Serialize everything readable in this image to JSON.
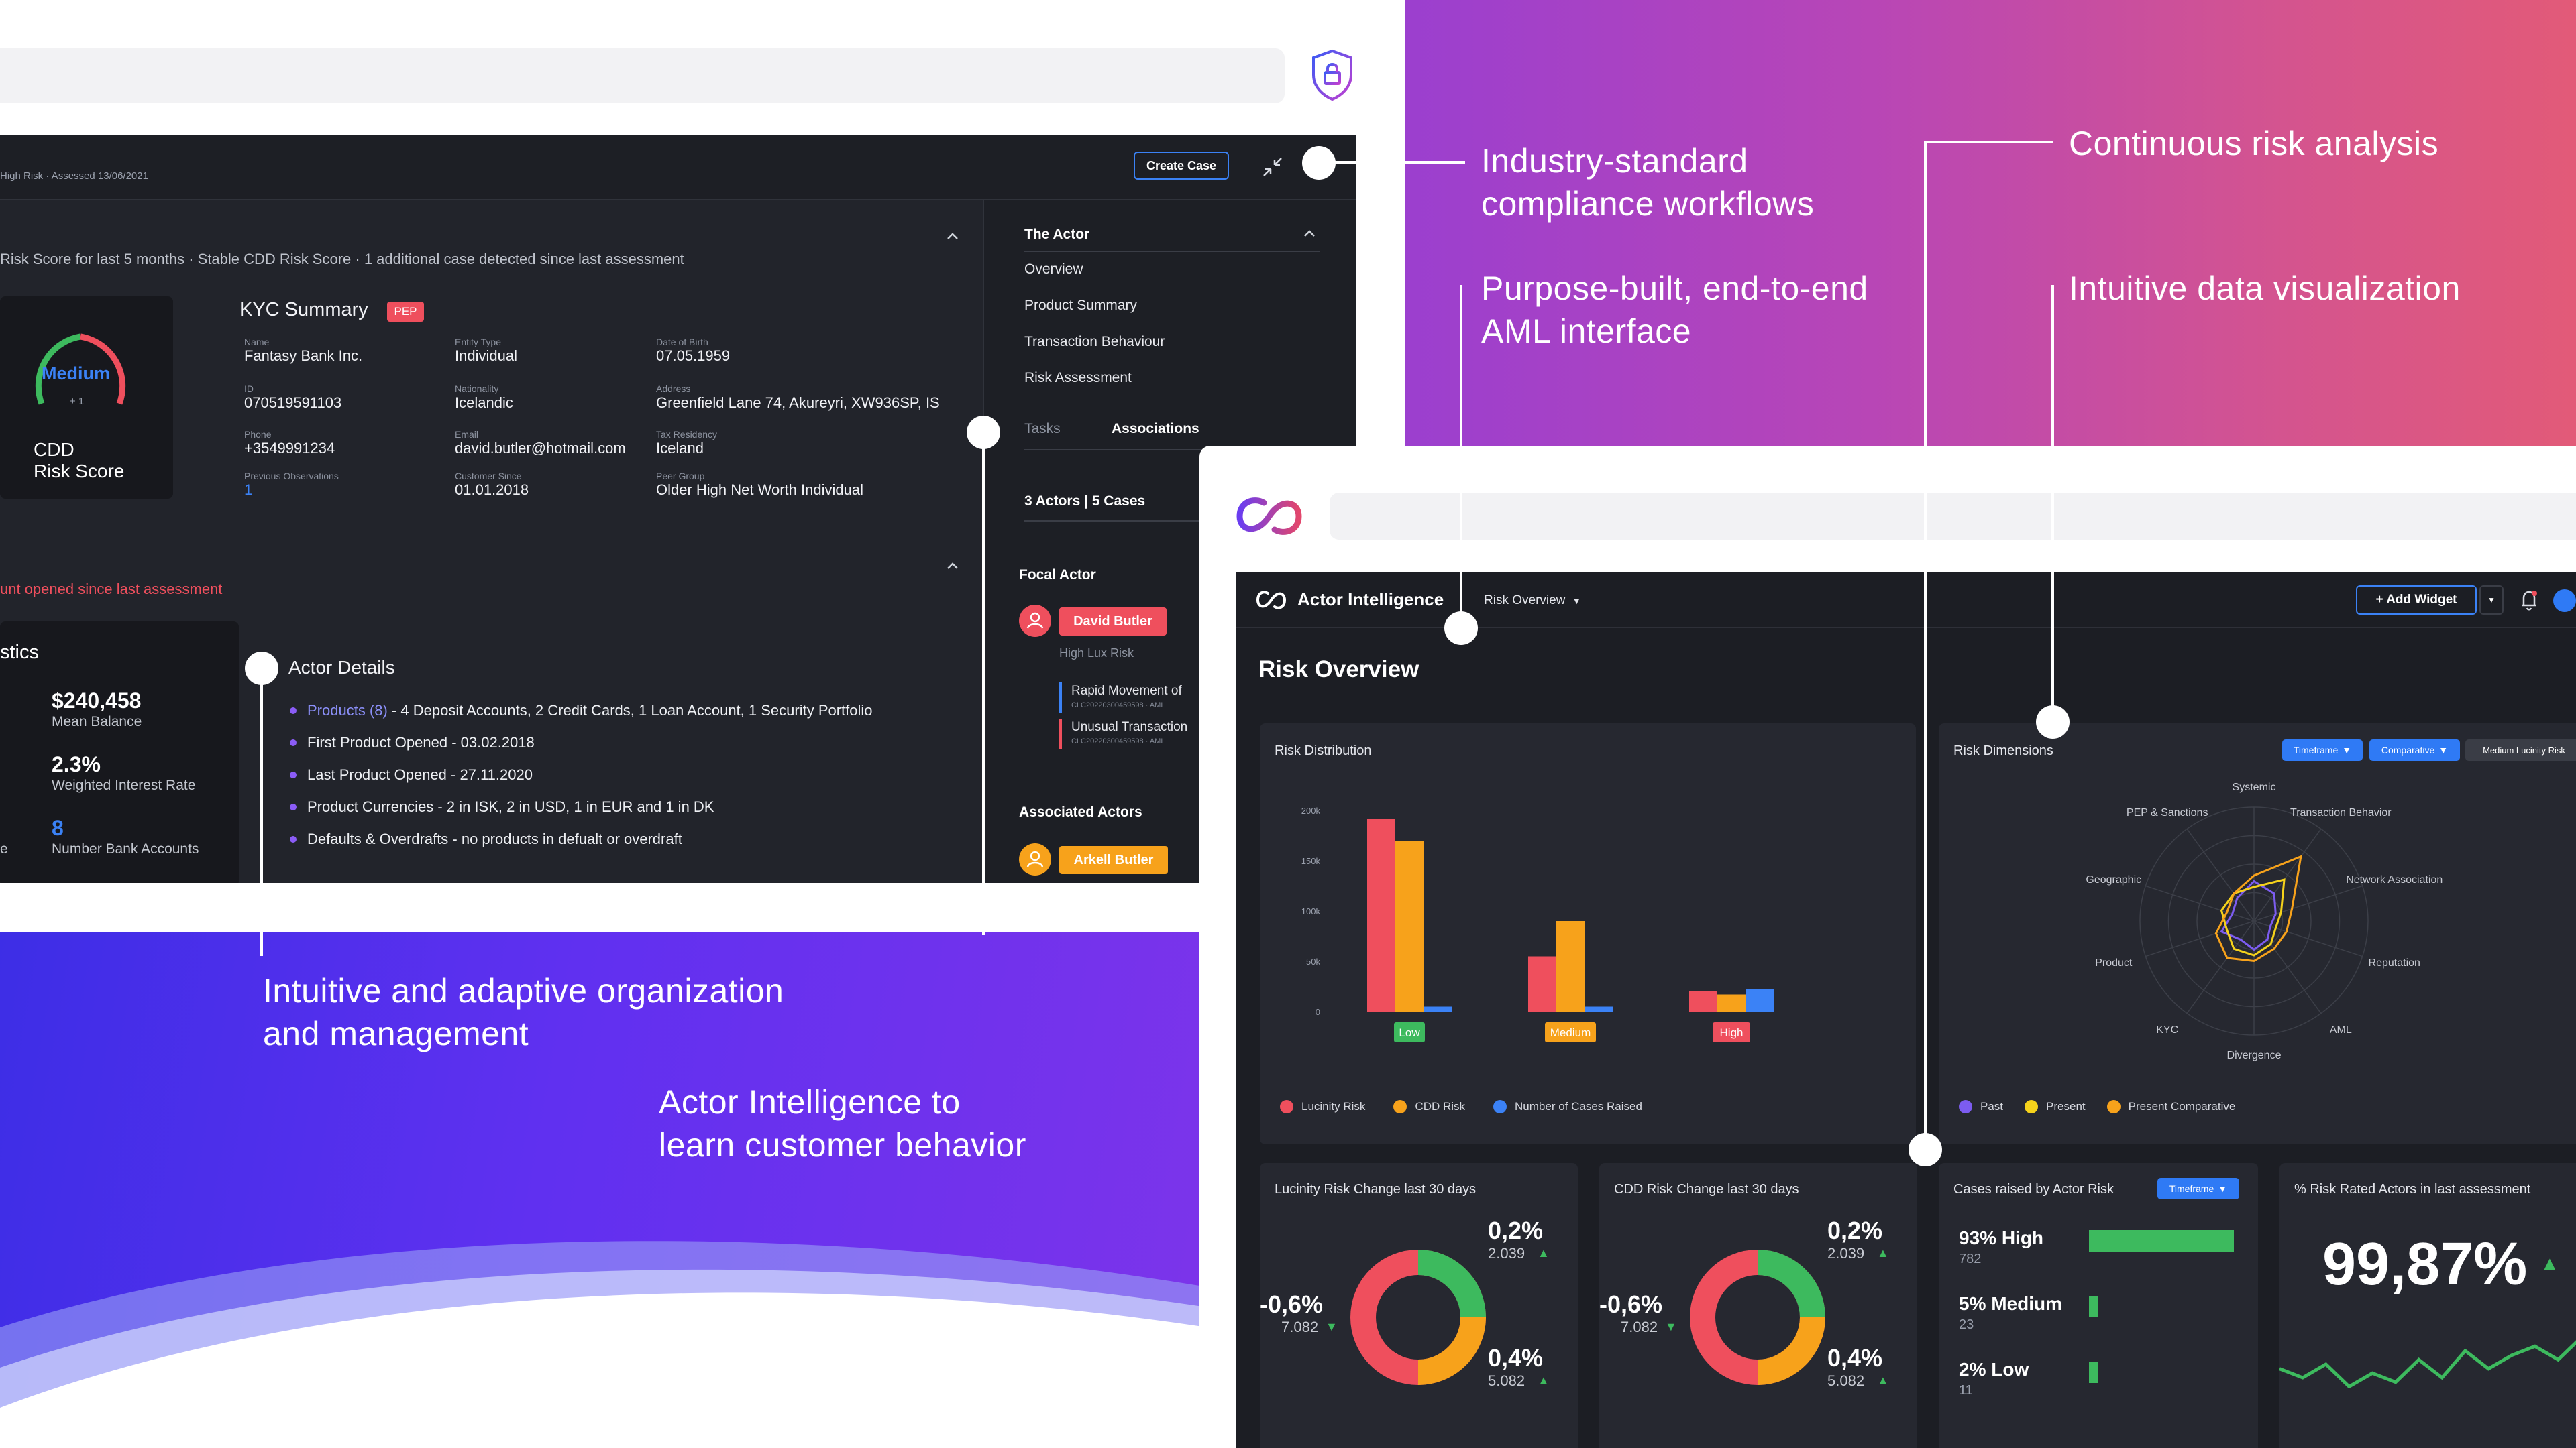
{
  "brand": {
    "gradient_top": [
      "#9b3fcf",
      "#e25a78"
    ],
    "gradient_bottom": [
      "#3d2ee6",
      "#7d34ea"
    ],
    "accent_blue": "#3b82f6",
    "risk_red": "#ef4f5d",
    "risk_amber": "#f7a21b",
    "risk_green": "#3dba5e",
    "logo": "linked-rings-logo"
  },
  "callouts": {
    "industry": [
      "Industry-standard",
      "compliance workflows"
    ],
    "continuous": "Continuous risk analysis",
    "purpose": [
      "Purpose-built, end-to-end",
      "AML interface"
    ],
    "dataviz": "Intuitive data visualization",
    "org": [
      "Intuitive and adaptive organization",
      "and management"
    ],
    "actor": [
      "Actor Intelligence to",
      "learn customer behavior"
    ]
  },
  "win1": {
    "header_status": "High Risk · Assessed 13/06/2021",
    "create_case": "Create Case",
    "summary_line": "Risk Score for last 5 months · Stable CDD Risk Score · 1 additional case detected since last assessment",
    "gauge_label": "Medium",
    "gauge_delta": "+ 1",
    "score_title_1": "CDD",
    "score_title_2": "Risk Score",
    "kyc_title": "KYC Summary",
    "pep": "PEP",
    "kyc_fields": [
      {
        "label": "Name",
        "value": "Fantasy Bank Inc."
      },
      {
        "label": "Entity Type",
        "value": "Individual"
      },
      {
        "label": "Date of Birth",
        "value": "07.05.1959"
      },
      {
        "label": "ID",
        "value": "070519591103"
      },
      {
        "label": "Nationality",
        "value": "Icelandic"
      },
      {
        "label": "Address",
        "value": "Greenfield Lane 74, Akureyri, XW936SP, IS"
      },
      {
        "label": "Phone",
        "value": "+3549991234"
      },
      {
        "label": "Email",
        "value": "david.butler@hotmail.com"
      },
      {
        "label": "Tax Residency",
        "value": "Iceland"
      },
      {
        "label": "Previous Observations",
        "value": "1"
      },
      {
        "label": "Customer Since",
        "value": "01.01.2018"
      },
      {
        "label": "Peer Group",
        "value": "Older High Net Worth Individual"
      }
    ],
    "alert_line": "unt opened since last assessment",
    "stats_title": "stics",
    "stats": [
      {
        "value": "$240,458",
        "label": "Mean Balance"
      },
      {
        "value": "2.3%",
        "label": "Weighted Interest Rate"
      },
      {
        "value": "8",
        "label": "Number Bank Accounts"
      }
    ],
    "stats_edge": "e",
    "actor_details_title": "Actor Details",
    "actor_details": [
      {
        "lead": "Products (8)",
        "text": " - 4 Deposit Accounts, 2 Credit Cards, 1 Loan Account, 1 Security Portfolio"
      },
      {
        "lead": "",
        "text": "First Product Opened - 03.02.2018"
      },
      {
        "lead": "",
        "text": "Last Product Opened - 27.11.2020"
      },
      {
        "lead": "",
        "text": "Product Currencies - 2 in ISK, 2 in USD, 1 in EUR and 1 in DK"
      },
      {
        "lead": "",
        "text": "Defaults & Overdrafts - no products in defualt or overdraft"
      }
    ],
    "sidebar": {
      "title": "The Actor",
      "links": [
        "Overview",
        "Product Summary",
        "Transaction Behaviour",
        "Risk Assessment"
      ],
      "tab_tasks": "Tasks",
      "tab_assoc": "Associations",
      "counts": "3 Actors | 5 Cases",
      "focal_title": "Focal Actor",
      "focal_name": "David Butler",
      "focal_sub": "High Lux Risk",
      "case1_title": "Rapid Movement of",
      "case1_id": "CLC20220300459598 · AML",
      "case2_title": "Unusual Transaction",
      "case2_id": "CLC20220300459598 · AML",
      "assoc_title": "Associated Actors",
      "assoc_name": "Arkell Butler"
    }
  },
  "win2": {
    "app_name": "Actor Intelligence",
    "view_select": "Risk Overview",
    "add_widget": "+ Add Widget",
    "page_title": "Risk Overview",
    "risk_distribution": {
      "title": "Risk Distribution",
      "legend": [
        {
          "name": "Lucinity Risk",
          "color": "#ef4f5d"
        },
        {
          "name": "CDD Risk",
          "color": "#f7a21b"
        },
        {
          "name": "Number of Cases Raised",
          "color": "#3b82f6"
        }
      ]
    },
    "risk_dimensions": {
      "title": "Risk Dimensions",
      "chip_timeframe": "Timeframe",
      "chip_comparative": "Comparative",
      "chip_medium": "Medium Lucinity Risk",
      "legend": [
        {
          "name": "Past",
          "color": "#7c5cf0"
        },
        {
          "name": "Present",
          "color": "#f5d21b"
        },
        {
          "name": "Present Comparative",
          "color": "#f7a21b"
        }
      ]
    },
    "lucinity_change": {
      "title": "Lucinity Risk Change last 30 days",
      "left_pct": "-0,6%",
      "left_sub": "7.082",
      "top_pct": "0,2%",
      "top_sub": "2.039",
      "bottom_pct": "0,4%",
      "bottom_sub": "5.082"
    },
    "cdd_change": {
      "title": "CDD Risk Change last 30 days",
      "left_pct": "-0,6%",
      "left_sub": "7.082",
      "top_pct": "0,2%",
      "top_sub": "2.039",
      "bottom_pct": "0,4%",
      "bottom_sub": "5.082"
    },
    "cases_by_risk": {
      "title": "Cases raised by Actor Risk",
      "chip": "Timeframe",
      "rows": [
        {
          "label": "93% High",
          "count": "782",
          "share": 0.93
        },
        {
          "label": "5% Medium",
          "count": "23",
          "share": 0.05
        },
        {
          "label": "2% Low",
          "count": "11",
          "share": 0.02
        }
      ]
    },
    "pct_rated": {
      "title": "% Risk Rated Actors in last assessment",
      "value": "99,87%"
    }
  },
  "chart_data": [
    {
      "type": "bar",
      "title": "Risk Distribution",
      "categories": [
        "Low",
        "Medium",
        "High"
      ],
      "series": [
        {
          "name": "Lucinity Risk",
          "values": [
            192000,
            55000,
            20000
          ]
        },
        {
          "name": "CDD Risk",
          "values": [
            170000,
            90000,
            17000
          ]
        },
        {
          "name": "Number of Cases Raised",
          "values": [
            5000,
            5000,
            22000
          ]
        }
      ],
      "yticks": [
        "0",
        "50k",
        "100k",
        "150k",
        "200k"
      ],
      "ylim": [
        0,
        200000
      ]
    },
    {
      "type": "radar",
      "title": "Risk Dimensions",
      "axes": [
        "Systemic",
        "Transaction Behavior",
        "Network Association",
        "Reputation",
        "AML",
        "Divergence",
        "KYC",
        "Product",
        "Geographic",
        "PEP & Sanctions"
      ],
      "series": [
        {
          "name": "Past",
          "values": [
            0.35,
            0.3,
            0.2,
            0.15,
            0.2,
            0.25,
            0.2,
            0.3,
            0.2,
            0.25
          ]
        },
        {
          "name": "Present",
          "values": [
            0.3,
            0.45,
            0.25,
            0.2,
            0.25,
            0.3,
            0.3,
            0.25,
            0.3,
            0.3
          ]
        },
        {
          "name": "Present Comparative",
          "values": [
            0.4,
            0.7,
            0.35,
            0.3,
            0.3,
            0.35,
            0.4,
            0.35,
            0.25,
            0.3
          ]
        }
      ],
      "rmax": 1
    },
    {
      "type": "line",
      "title": "% Risk Rated Actors in last assessment",
      "values": [
        40,
        30,
        45,
        20,
        35,
        25,
        50,
        30,
        60,
        40,
        55,
        65,
        50,
        75
      ]
    }
  ]
}
